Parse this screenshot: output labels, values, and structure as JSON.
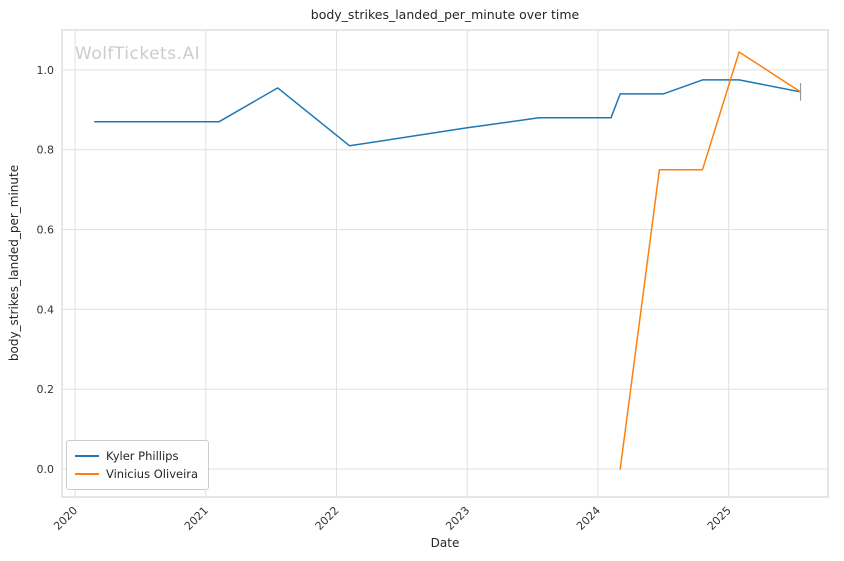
{
  "watermark": "WolfTickets.AI",
  "chart_data": {
    "type": "line",
    "title": "body_strikes_landed_per_minute over time",
    "xlabel": "Date",
    "ylabel": "body_strikes_landed_per_minute",
    "xlim": [
      2019.9,
      2025.76
    ],
    "ylim": [
      -0.07,
      1.1
    ],
    "x_ticks": [
      2020,
      2021,
      2022,
      2023,
      2024,
      2025
    ],
    "y_ticks": [
      0.0,
      0.2,
      0.4,
      0.6,
      0.8,
      1.0
    ],
    "grid": true,
    "legend_position": "lower left",
    "x_tick_rotation_deg": 45,
    "series": [
      {
        "name": "Kyler Phillips",
        "color": "#1f77b4",
        "points": [
          [
            2020.15,
            0.87
          ],
          [
            2021.1,
            0.87
          ],
          [
            2021.55,
            0.955
          ],
          [
            2022.1,
            0.81
          ],
          [
            2023.0,
            0.855
          ],
          [
            2023.55,
            0.88
          ],
          [
            2024.1,
            0.88
          ],
          [
            2024.17,
            0.94
          ],
          [
            2024.5,
            0.94
          ],
          [
            2024.8,
            0.975
          ],
          [
            2025.08,
            0.975
          ],
          [
            2025.55,
            0.945
          ]
        ]
      },
      {
        "name": "Vinicius Oliveira",
        "color": "#ff7f0e",
        "points": [
          [
            2024.17,
            0.0
          ],
          [
            2024.47,
            0.75
          ],
          [
            2024.8,
            0.75
          ],
          [
            2025.08,
            1.045
          ],
          [
            2025.55,
            0.945
          ]
        ]
      }
    ],
    "error_bar": {
      "x": 2025.55,
      "y": 0.945,
      "yerr": 0.022,
      "color": "#999999"
    }
  },
  "style": {
    "grid_color": "#e0e0e0",
    "spine_color": "#cccccc",
    "tick_label_color": "#333333",
    "background": "#ffffff"
  }
}
